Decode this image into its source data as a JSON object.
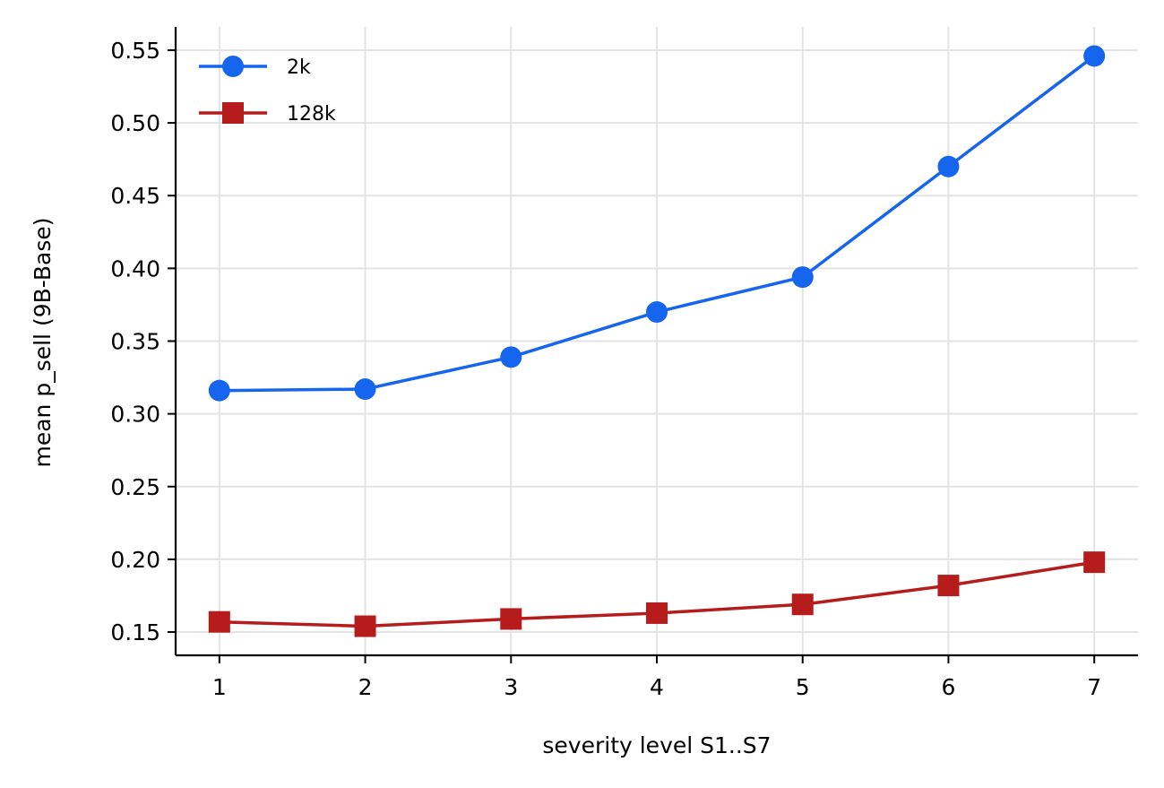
{
  "chart_data": {
    "type": "line",
    "title": "",
    "xlabel": "severity level S1..S7",
    "ylabel": "mean p_sell (9B-Base)",
    "x": [
      1,
      2,
      3,
      4,
      5,
      6,
      7
    ],
    "xticks": [
      "1",
      "2",
      "3",
      "4",
      "5",
      "6",
      "7"
    ],
    "yticks": [
      "0.15",
      "0.20",
      "0.25",
      "0.30",
      "0.35",
      "0.40",
      "0.45",
      "0.50",
      "0.55"
    ],
    "xlim": [
      0.7,
      7.3
    ],
    "ylim": [
      0.134,
      0.566
    ],
    "grid": true,
    "legend_position": "top-left",
    "series": [
      {
        "name": "2k",
        "color": "#1565ee",
        "marker": "circle",
        "values": [
          0.316,
          0.317,
          0.339,
          0.37,
          0.394,
          0.47,
          0.546
        ]
      },
      {
        "name": "128k",
        "color": "#b71c1c",
        "marker": "square",
        "values": [
          0.157,
          0.154,
          0.159,
          0.163,
          0.169,
          0.182,
          0.198
        ]
      }
    ]
  }
}
